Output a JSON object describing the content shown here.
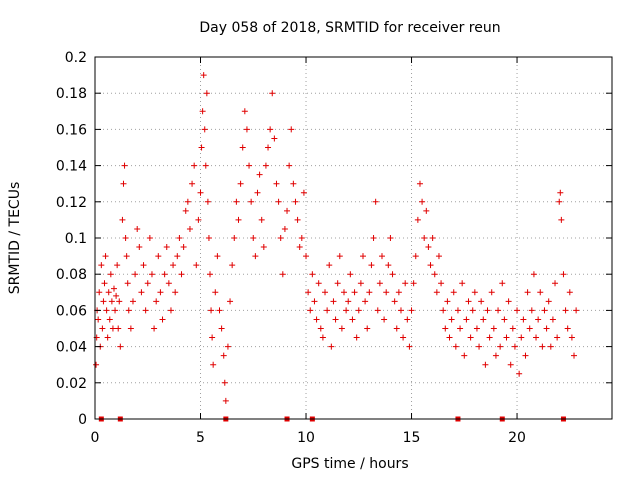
{
  "chart_data": {
    "type": "scatter",
    "title": "Day 058 of 2018, SRMTID for receiver reun",
    "xlabel": "GPS time / hours",
    "ylabel": "SRMTID / TECUs",
    "xlim": [
      0,
      24.5
    ],
    "ylim": [
      0,
      0.2
    ],
    "xticks": [
      0,
      5,
      10,
      15,
      20
    ],
    "yticks": [
      0,
      0.02,
      0.04,
      0.06,
      0.08,
      0.1,
      0.12,
      0.14,
      0.16,
      0.18,
      0.2
    ],
    "grid": true,
    "marker": "+",
    "color": "#e00000",
    "series": [
      {
        "name": "SRMTID",
        "points": [
          [
            0.05,
            0.03
          ],
          [
            0.08,
            0.045
          ],
          [
            0.1,
            0.06
          ],
          [
            0.15,
            0.055
          ],
          [
            0.2,
            0.07
          ],
          [
            0.25,
            0.04
          ],
          [
            0.3,
            0.085
          ],
          [
            0.35,
            0.05
          ],
          [
            0.4,
            0.065
          ],
          [
            0.45,
            0.075
          ],
          [
            0.5,
            0.09
          ],
          [
            0.55,
            0.06
          ],
          [
            0.6,
            0.045
          ],
          [
            0.65,
            0.07
          ],
          [
            0.7,
            0.055
          ],
          [
            0.75,
            0.08
          ],
          [
            0.8,
            0.065
          ],
          [
            0.85,
            0.05
          ],
          [
            0.9,
            0.072
          ],
          [
            0.95,
            0.06
          ],
          [
            1.0,
            0.068
          ],
          [
            1.05,
            0.085
          ],
          [
            1.1,
            0.05
          ],
          [
            1.15,
            0.065
          ],
          [
            1.2,
            0.04
          ],
          [
            1.3,
            0.11
          ],
          [
            1.35,
            0.13
          ],
          [
            1.4,
            0.14
          ],
          [
            1.45,
            0.1
          ],
          [
            1.5,
            0.09
          ],
          [
            1.55,
            0.075
          ],
          [
            1.6,
            0.06
          ],
          [
            1.7,
            0.05
          ],
          [
            1.8,
            0.065
          ],
          [
            1.9,
            0.08
          ],
          [
            2.0,
            0.105
          ],
          [
            2.1,
            0.095
          ],
          [
            2.2,
            0.07
          ],
          [
            2.3,
            0.085
          ],
          [
            2.4,
            0.06
          ],
          [
            2.5,
            0.075
          ],
          [
            2.6,
            0.1
          ],
          [
            2.7,
            0.08
          ],
          [
            2.8,
            0.05
          ],
          [
            2.9,
            0.065
          ],
          [
            3.0,
            0.09
          ],
          [
            3.1,
            0.07
          ],
          [
            3.2,
            0.055
          ],
          [
            3.3,
            0.08
          ],
          [
            3.4,
            0.095
          ],
          [
            3.5,
            0.075
          ],
          [
            3.6,
            0.06
          ],
          [
            3.7,
            0.085
          ],
          [
            3.8,
            0.07
          ],
          [
            3.9,
            0.09
          ],
          [
            4.0,
            0.1
          ],
          [
            4.1,
            0.08
          ],
          [
            4.2,
            0.095
          ],
          [
            4.3,
            0.115
          ],
          [
            4.4,
            0.12
          ],
          [
            4.5,
            0.105
          ],
          [
            4.6,
            0.13
          ],
          [
            4.7,
            0.14
          ],
          [
            4.8,
            0.085
          ],
          [
            4.9,
            0.11
          ],
          [
            5.0,
            0.125
          ],
          [
            5.05,
            0.15
          ],
          [
            5.1,
            0.17
          ],
          [
            5.15,
            0.19
          ],
          [
            5.2,
            0.16
          ],
          [
            5.25,
            0.14
          ],
          [
            5.3,
            0.18
          ],
          [
            5.35,
            0.12
          ],
          [
            5.4,
            0.1
          ],
          [
            5.45,
            0.08
          ],
          [
            5.5,
            0.06
          ],
          [
            5.55,
            0.045
          ],
          [
            5.6,
            0.03
          ],
          [
            5.7,
            0.07
          ],
          [
            5.8,
            0.09
          ],
          [
            5.9,
            0.06
          ],
          [
            6.0,
            0.05
          ],
          [
            6.1,
            0.035
          ],
          [
            6.15,
            0.02
          ],
          [
            6.2,
            0.01
          ],
          [
            6.3,
            0.04
          ],
          [
            6.4,
            0.065
          ],
          [
            6.5,
            0.085
          ],
          [
            6.6,
            0.1
          ],
          [
            6.7,
            0.12
          ],
          [
            6.8,
            0.11
          ],
          [
            6.9,
            0.13
          ],
          [
            7.0,
            0.15
          ],
          [
            7.1,
            0.17
          ],
          [
            7.2,
            0.16
          ],
          [
            7.3,
            0.14
          ],
          [
            7.4,
            0.12
          ],
          [
            7.5,
            0.1
          ],
          [
            7.6,
            0.09
          ],
          [
            7.7,
            0.125
          ],
          [
            7.8,
            0.135
          ],
          [
            7.9,
            0.11
          ],
          [
            8.0,
            0.095
          ],
          [
            8.1,
            0.14
          ],
          [
            8.2,
            0.15
          ],
          [
            8.3,
            0.16
          ],
          [
            8.4,
            0.18
          ],
          [
            8.5,
            0.155
          ],
          [
            8.6,
            0.13
          ],
          [
            8.7,
            0.12
          ],
          [
            8.8,
            0.1
          ],
          [
            8.9,
            0.08
          ],
          [
            9.0,
            0.105
          ],
          [
            9.1,
            0.115
          ],
          [
            9.2,
            0.14
          ],
          [
            9.3,
            0.16
          ],
          [
            9.4,
            0.13
          ],
          [
            9.5,
            0.12
          ],
          [
            9.6,
            0.11
          ],
          [
            9.7,
            0.095
          ],
          [
            9.8,
            0.1
          ],
          [
            9.9,
            0.125
          ],
          [
            10.0,
            0.09
          ],
          [
            10.1,
            0.07
          ],
          [
            10.2,
            0.06
          ],
          [
            10.3,
            0.08
          ],
          [
            10.4,
            0.065
          ],
          [
            10.5,
            0.055
          ],
          [
            10.6,
            0.075
          ],
          [
            10.7,
            0.05
          ],
          [
            10.8,
            0.045
          ],
          [
            10.9,
            0.07
          ],
          [
            11.0,
            0.06
          ],
          [
            11.1,
            0.085
          ],
          [
            11.2,
            0.04
          ],
          [
            11.3,
            0.065
          ],
          [
            11.4,
            0.055
          ],
          [
            11.5,
            0.075
          ],
          [
            11.6,
            0.09
          ],
          [
            11.7,
            0.05
          ],
          [
            11.8,
            0.07
          ],
          [
            11.9,
            0.06
          ],
          [
            12.0,
            0.065
          ],
          [
            12.1,
            0.08
          ],
          [
            12.2,
            0.055
          ],
          [
            12.3,
            0.07
          ],
          [
            12.4,
            0.045
          ],
          [
            12.5,
            0.06
          ],
          [
            12.6,
            0.075
          ],
          [
            12.7,
            0.09
          ],
          [
            12.8,
            0.065
          ],
          [
            12.9,
            0.05
          ],
          [
            13.0,
            0.07
          ],
          [
            13.1,
            0.085
          ],
          [
            13.2,
            0.1
          ],
          [
            13.3,
            0.12
          ],
          [
            13.4,
            0.06
          ],
          [
            13.5,
            0.075
          ],
          [
            13.6,
            0.09
          ],
          [
            13.7,
            0.055
          ],
          [
            13.8,
            0.07
          ],
          [
            13.9,
            0.085
          ],
          [
            14.0,
            0.1
          ],
          [
            14.1,
            0.08
          ],
          [
            14.2,
            0.065
          ],
          [
            14.3,
            0.05
          ],
          [
            14.4,
            0.07
          ],
          [
            14.5,
            0.06
          ],
          [
            14.6,
            0.045
          ],
          [
            14.7,
            0.075
          ],
          [
            14.8,
            0.055
          ],
          [
            14.9,
            0.04
          ],
          [
            15.0,
            0.06
          ],
          [
            15.1,
            0.075
          ],
          [
            15.2,
            0.09
          ],
          [
            15.3,
            0.11
          ],
          [
            15.4,
            0.13
          ],
          [
            15.5,
            0.12
          ],
          [
            15.6,
            0.1
          ],
          [
            15.7,
            0.115
          ],
          [
            15.8,
            0.095
          ],
          [
            15.9,
            0.085
          ],
          [
            16.0,
            0.1
          ],
          [
            16.1,
            0.08
          ],
          [
            16.2,
            0.07
          ],
          [
            16.3,
            0.09
          ],
          [
            16.4,
            0.075
          ],
          [
            16.5,
            0.06
          ],
          [
            16.6,
            0.05
          ],
          [
            16.7,
            0.065
          ],
          [
            16.8,
            0.045
          ],
          [
            16.9,
            0.055
          ],
          [
            17.0,
            0.07
          ],
          [
            17.1,
            0.04
          ],
          [
            17.2,
            0.06
          ],
          [
            17.3,
            0.05
          ],
          [
            17.4,
            0.075
          ],
          [
            17.5,
            0.035
          ],
          [
            17.6,
            0.055
          ],
          [
            17.7,
            0.065
          ],
          [
            17.8,
            0.045
          ],
          [
            17.9,
            0.06
          ],
          [
            18.0,
            0.07
          ],
          [
            18.1,
            0.05
          ],
          [
            18.2,
            0.04
          ],
          [
            18.3,
            0.065
          ],
          [
            18.4,
            0.055
          ],
          [
            18.5,
            0.03
          ],
          [
            18.6,
            0.06
          ],
          [
            18.7,
            0.045
          ],
          [
            18.8,
            0.07
          ],
          [
            18.9,
            0.05
          ],
          [
            19.0,
            0.035
          ],
          [
            19.1,
            0.06
          ],
          [
            19.2,
            0.04
          ],
          [
            19.3,
            0.075
          ],
          [
            19.4,
            0.055
          ],
          [
            19.5,
            0.045
          ],
          [
            19.6,
            0.065
          ],
          [
            19.7,
            0.03
          ],
          [
            19.8,
            0.05
          ],
          [
            19.9,
            0.04
          ],
          [
            20.0,
            0.06
          ],
          [
            20.1,
            0.025
          ],
          [
            20.2,
            0.045
          ],
          [
            20.3,
            0.055
          ],
          [
            20.4,
            0.035
          ],
          [
            20.5,
            0.07
          ],
          [
            20.6,
            0.05
          ],
          [
            20.7,
            0.06
          ],
          [
            20.8,
            0.08
          ],
          [
            20.9,
            0.045
          ],
          [
            21.0,
            0.055
          ],
          [
            21.1,
            0.07
          ],
          [
            21.2,
            0.04
          ],
          [
            21.3,
            0.06
          ],
          [
            21.4,
            0.05
          ],
          [
            21.5,
            0.065
          ],
          [
            21.6,
            0.04
          ],
          [
            21.7,
            0.055
          ],
          [
            21.8,
            0.075
          ],
          [
            21.9,
            0.045
          ],
          [
            22.0,
            0.12
          ],
          [
            22.05,
            0.125
          ],
          [
            22.1,
            0.11
          ],
          [
            22.2,
            0.08
          ],
          [
            22.3,
            0.06
          ],
          [
            22.4,
            0.05
          ],
          [
            22.5,
            0.07
          ],
          [
            22.6,
            0.045
          ],
          [
            22.7,
            0.035
          ],
          [
            22.8,
            0.06
          ]
        ]
      }
    ],
    "zero_markers_x": [
      0.3,
      1.2,
      6.2,
      9.1,
      10.3,
      17.2,
      19.3,
      22.2
    ]
  }
}
